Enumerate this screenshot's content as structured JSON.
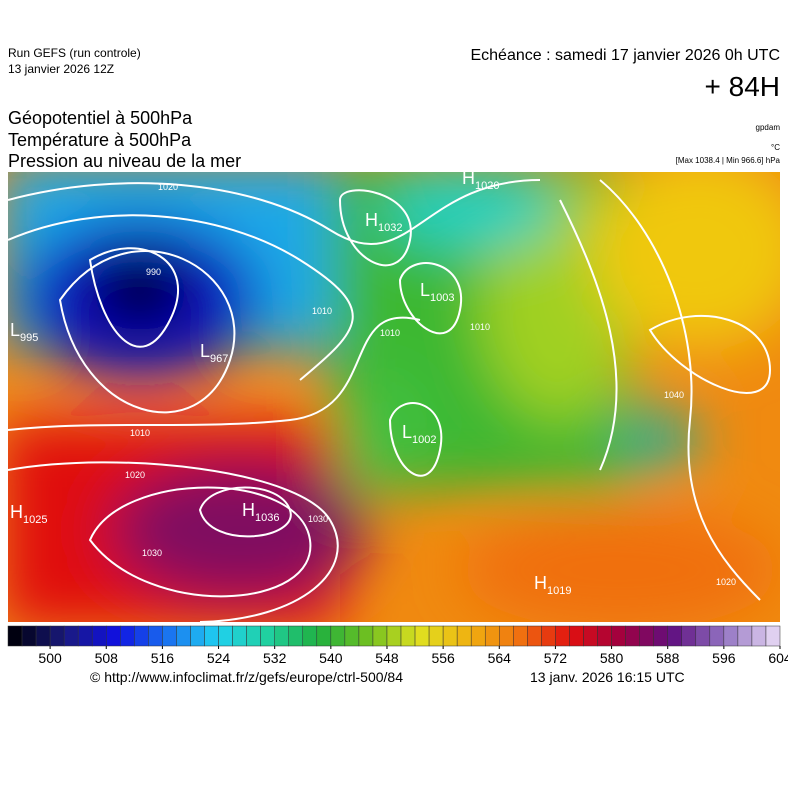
{
  "header": {
    "run": "Run GEFS (run controle)",
    "run_date": "13 janvier 2026 12Z",
    "valid": "Echéance : samedi 17 janvier 2026 0h UTC",
    "lead": "+ 84H",
    "fields": [
      "Géopotentiel à 500hPa",
      "Température à 500hPa",
      "Pression au niveau de la mer"
    ],
    "units": [
      "gpdam",
      "°C"
    ],
    "extremes": "[Max 1038.4 | Min 966.6] hPa"
  },
  "pressure_centers": [
    {
      "letter": "H",
      "value": "1020"
    },
    {
      "letter": "H",
      "value": "1032"
    },
    {
      "letter": "L",
      "value": "1003"
    },
    {
      "letter": "L",
      "value": "995"
    },
    {
      "letter": "L",
      "value": "967"
    },
    {
      "letter": "L",
      "value": "1002"
    },
    {
      "letter": "H",
      "value": "1036"
    },
    {
      "letter": "H",
      "value": "1025"
    },
    {
      "letter": "H",
      "value": "1019"
    }
  ],
  "isobar_labels": [
    1020,
    990,
    1010,
    1010,
    1010,
    1010,
    1020,
    1030,
    1030,
    1040,
    1020
  ],
  "colorbar": {
    "range": [
      494,
      604
    ],
    "step": 2,
    "ticks": [
      500,
      508,
      516,
      524,
      532,
      540,
      548,
      556,
      564,
      572,
      580,
      588,
      596,
      604
    ],
    "colors": [
      "#000010",
      "#1a1a80",
      "#1010e0",
      "#1a70f0",
      "#20d0f0",
      "#20d0a0",
      "#20b040",
      "#70c020",
      "#e0e020",
      "#f0b010",
      "#f07010",
      "#e01010",
      "#a00040",
      "#601080",
      "#9070c0",
      "#e0d0f0"
    ]
  },
  "footer": {
    "source": "© http://www.infoclimat.fr/z/gefs/europe/ctrl-500/84",
    "generated": "13 janv. 2026 16:15 UTC"
  }
}
